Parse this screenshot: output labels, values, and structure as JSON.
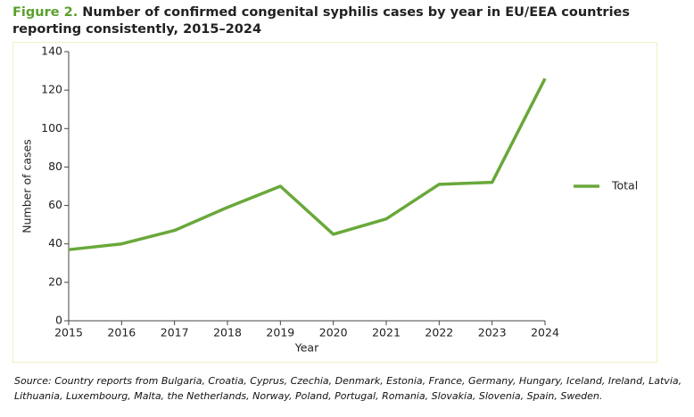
{
  "chart_data": {
    "type": "line",
    "figure_label": "Figure 2.",
    "title": "Number of confirmed congenital syphilis cases by year in EU/EEA countries reporting consistently, 2015–2024",
    "xlabel": "Year",
    "ylabel": "Number of cases",
    "x": [
      2015,
      2016,
      2017,
      2018,
      2019,
      2020,
      2021,
      2022,
      2023,
      2024
    ],
    "series": [
      {
        "name": "Total",
        "color": "#69a83a",
        "values": [
          37,
          40,
          47,
          59,
          70,
          45,
          53,
          71,
          72,
          126
        ]
      }
    ],
    "xlim": [
      2015,
      2024
    ],
    "xticks": [
      2015,
      2016,
      2017,
      2018,
      2019,
      2020,
      2021,
      2022,
      2023,
      2024
    ],
    "ylim": [
      0,
      140
    ],
    "yticks": [
      0,
      20,
      40,
      60,
      80,
      100,
      120,
      140
    ],
    "legend": "right",
    "source": "Source: Country reports from Bulgaria, Croatia, Cyprus, Czechia, Denmark, Estonia, France, Germany, Hungary, Iceland, Ireland, Latvia, Lithuania, Luxembourg, Malta, the Netherlands, Norway, Poland, Portugal, Romania, Slovakia, Slovenia, Spain, Sweden."
  }
}
